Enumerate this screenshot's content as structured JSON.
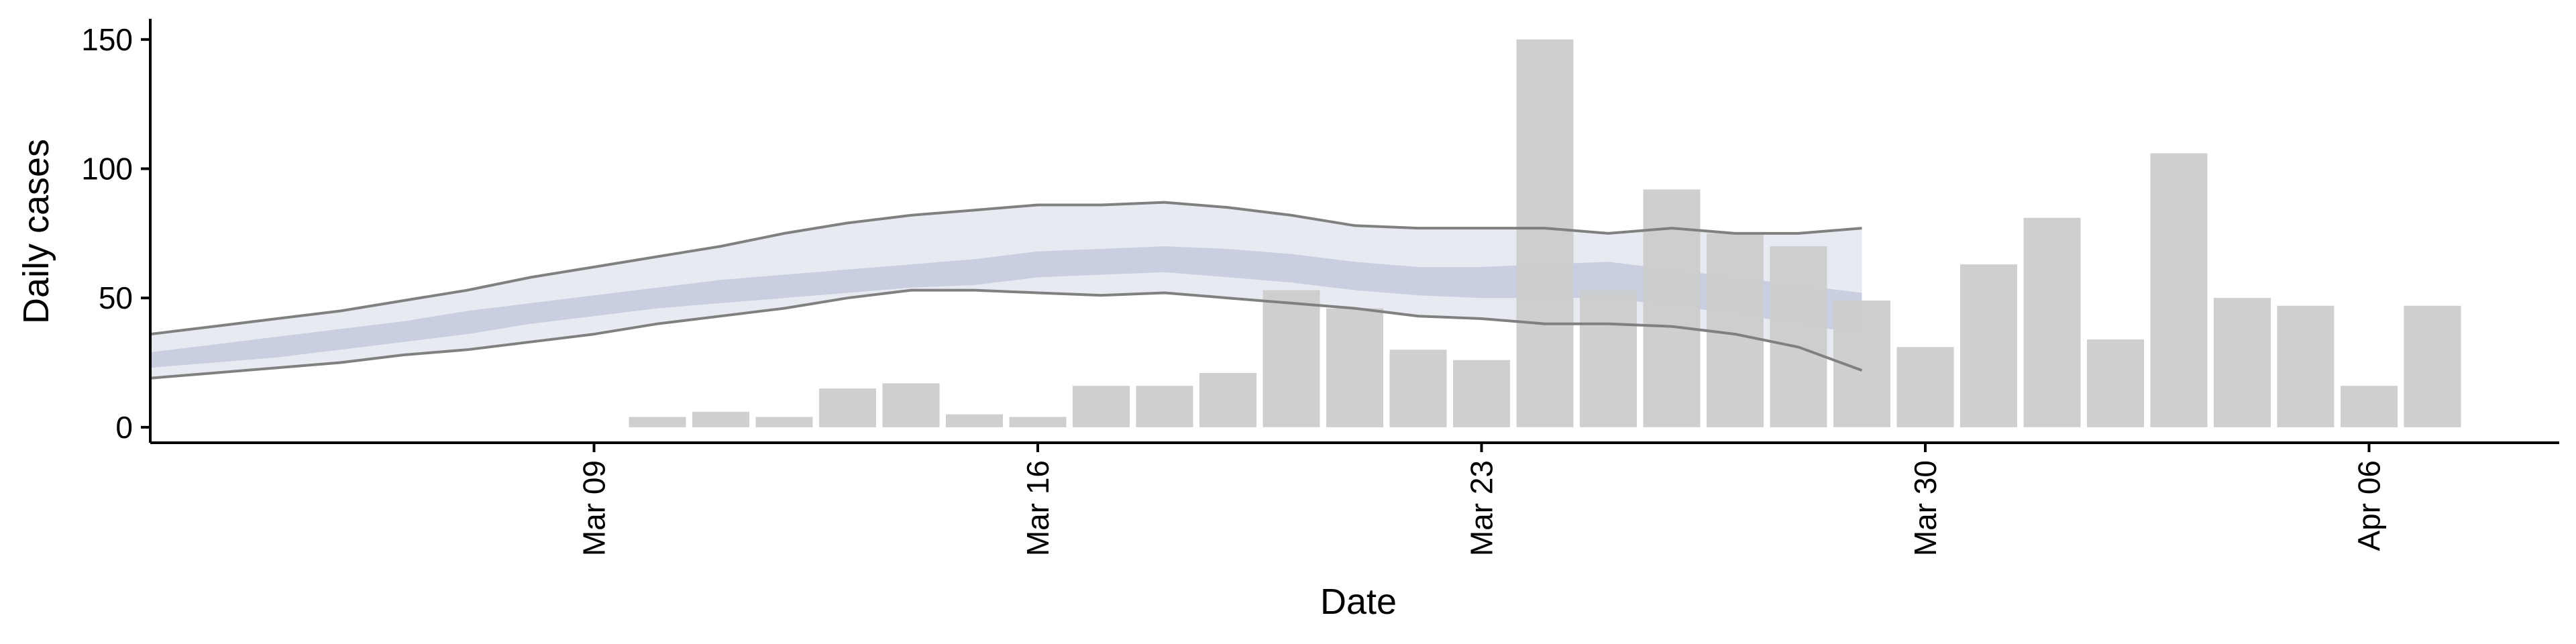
{
  "chart_data": {
    "type": "bar",
    "xlabel": "Date",
    "ylabel": "Daily cases",
    "ylim": [
      -6,
      158
    ],
    "xlim": [
      "2020-03-02",
      "2020-04-09"
    ],
    "yticks": [
      0,
      50,
      100,
      150
    ],
    "xticks": [
      {
        "date": "2020-03-09",
        "label": "Mar 09"
      },
      {
        "date": "2020-03-16",
        "label": "Mar 16"
      },
      {
        "date": "2020-03-23",
        "label": "Mar 23"
      },
      {
        "date": "2020-03-30",
        "label": "Mar 30"
      },
      {
        "date": "2020-04-06",
        "label": "Apr 06"
      }
    ],
    "bars": {
      "color": "#cccccc",
      "dates": [
        "2020-03-10",
        "2020-03-11",
        "2020-03-12",
        "2020-03-13",
        "2020-03-14",
        "2020-03-15",
        "2020-03-16",
        "2020-03-17",
        "2020-03-18",
        "2020-03-19",
        "2020-03-20",
        "2020-03-21",
        "2020-03-22",
        "2020-03-23",
        "2020-03-24",
        "2020-03-25",
        "2020-03-26",
        "2020-03-27",
        "2020-03-28",
        "2020-03-29",
        "2020-03-30",
        "2020-03-31",
        "2020-04-01",
        "2020-04-02",
        "2020-04-03",
        "2020-04-04",
        "2020-04-05",
        "2020-04-06",
        "2020-04-07"
      ],
      "values": [
        4,
        6,
        4,
        15,
        17,
        5,
        4,
        16,
        16,
        21,
        53,
        46,
        30,
        26,
        150,
        53,
        92,
        75,
        70,
        49,
        31,
        63,
        81,
        34,
        106,
        50,
        47,
        16,
        47
      ]
    },
    "forecast": {
      "dates": [
        "2020-03-02",
        "2020-03-03",
        "2020-03-04",
        "2020-03-05",
        "2020-03-06",
        "2020-03-07",
        "2020-03-08",
        "2020-03-09",
        "2020-03-10",
        "2020-03-11",
        "2020-03-12",
        "2020-03-13",
        "2020-03-14",
        "2020-03-15",
        "2020-03-16",
        "2020-03-17",
        "2020-03-18",
        "2020-03-19",
        "2020-03-20",
        "2020-03-21",
        "2020-03-22",
        "2020-03-23",
        "2020-03-24",
        "2020-03-25",
        "2020-03-26",
        "2020-03-27",
        "2020-03-28",
        "2020-03-29"
      ],
      "upper90": [
        36,
        39,
        42,
        45,
        49,
        53,
        58,
        62,
        66,
        70,
        75,
        79,
        82,
        84,
        86,
        86,
        87,
        85,
        82,
        78,
        77,
        77,
        77,
        75,
        77,
        75,
        75,
        77
      ],
      "lower90": [
        19,
        21,
        23,
        25,
        28,
        30,
        33,
        36,
        40,
        43,
        46,
        50,
        53,
        53,
        52,
        51,
        52,
        50,
        48,
        46,
        43,
        42,
        40,
        40,
        39,
        36,
        31,
        22
      ],
      "upper50": [
        29,
        32,
        35,
        38,
        41,
        45,
        48,
        51,
        54,
        57,
        59,
        61,
        63,
        65,
        68,
        69,
        70,
        69,
        67,
        64,
        62,
        62,
        63,
        64,
        61,
        58,
        55,
        52
      ],
      "lower50": [
        23,
        25,
        27,
        30,
        33,
        36,
        40,
        43,
        46,
        48,
        50,
        52,
        54,
        55,
        58,
        59,
        60,
        58,
        56,
        53,
        51,
        50,
        50,
        50,
        47,
        44,
        40,
        36
      ],
      "band90_color": "#e8eaf2",
      "band50_color": "#c9cfe0",
      "line_color": "#808080"
    }
  }
}
